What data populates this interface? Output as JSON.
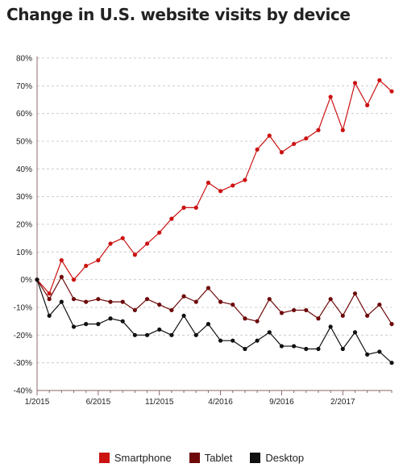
{
  "chart_data": {
    "type": "line",
    "title": "Change in U.S. website visits by device",
    "xlabel": "",
    "ylabel": "",
    "x_ticks": [
      "1/2015",
      "6/2015",
      "11/2015",
      "4/2016",
      "9/2016",
      "2/2017"
    ],
    "x": [
      "1/2015",
      "2/2015",
      "3/2015",
      "4/2015",
      "5/2015",
      "6/2015",
      "7/2015",
      "8/2015",
      "9/2015",
      "10/2015",
      "11/2015",
      "12/2015",
      "1/2016",
      "2/2016",
      "3/2016",
      "4/2016",
      "5/2016",
      "6/2016",
      "7/2016",
      "8/2016",
      "9/2016",
      "10/2016",
      "11/2016",
      "12/2016",
      "1/2017",
      "2/2017",
      "3/2017",
      "4/2017",
      "5/2017",
      "6/2017"
    ],
    "y_ticks": [
      "80%",
      "70%",
      "60%",
      "50%",
      "40%",
      "30%",
      "20%",
      "10%",
      "0%",
      "-10%",
      "-20%",
      "-30%",
      "-40%"
    ],
    "ylim": [
      -40,
      80
    ],
    "grid": true,
    "legend_position": "bottom",
    "series": [
      {
        "name": "Smartphone",
        "color": "#cc1111",
        "values": [
          0,
          -5,
          7,
          0,
          5,
          7,
          13,
          15,
          9,
          13,
          17,
          22,
          26,
          26,
          35,
          32,
          34,
          36,
          47,
          52,
          46,
          49,
          51,
          54,
          66,
          54,
          71,
          63,
          72,
          68
        ]
      },
      {
        "name": "Tablet",
        "color": "#6e0a0a",
        "values": [
          0,
          -7,
          1,
          -7,
          -8,
          -7,
          -8,
          -8,
          -11,
          -7,
          -9,
          -11,
          -6,
          -8,
          -3,
          -8,
          -9,
          -14,
          -15,
          -7,
          -12,
          -11,
          -11,
          -14,
          -7,
          -13,
          -5,
          -13,
          -9,
          -16
        ]
      },
      {
        "name": "Desktop",
        "color": "#111111",
        "values": [
          0,
          -13,
          -8,
          -17,
          -16,
          -16,
          -14,
          -15,
          -20,
          -20,
          -18,
          -20,
          -13,
          -20,
          -16,
          -22,
          -22,
          -25,
          -22,
          -19,
          -24,
          -24,
          -25,
          -25,
          -17,
          -25,
          -19,
          -27,
          -26,
          -30
        ]
      }
    ]
  }
}
